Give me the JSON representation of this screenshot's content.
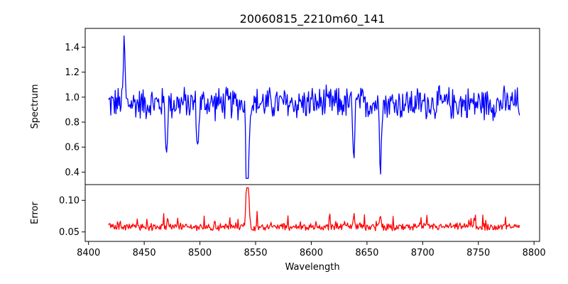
{
  "chart_data": {
    "type": "line",
    "title": "20060815_2210m60_141",
    "xlabel": "Wavelength",
    "x_range": [
      8418,
      8787
    ],
    "xlim": [
      8397,
      8805
    ],
    "x_ticks": [
      8400,
      8450,
      8500,
      8550,
      8600,
      8650,
      8700,
      8750,
      8800
    ],
    "features": [
      {
        "x": 8432,
        "spec_depth": 0.5,
        "err_bump": 0.0
      },
      {
        "x": 8470,
        "spec_depth": -0.42,
        "err_bump": 0.0
      },
      {
        "x": 8498,
        "spec_depth": -0.4,
        "err_bump": 0.0
      },
      {
        "x": 8542,
        "spec_depth": -0.62,
        "err_bump": 0.06
      },
      {
        "x": 8543.5,
        "spec_depth": -0.6,
        "err_bump": 0.055
      },
      {
        "x": 8638,
        "spec_depth": -0.48,
        "err_bump": 0.01
      },
      {
        "x": 8662,
        "spec_depth": -0.45,
        "err_bump": 0.02
      }
    ],
    "panels": [
      {
        "name": "spectrum",
        "ylabel": "Spectrum",
        "ylim": [
          0.3,
          1.55
        ],
        "y_ticks": [
          0.4,
          0.6,
          0.8,
          1.0,
          1.2,
          1.4
        ],
        "y_tick_labels": [
          "0.4",
          "0.6",
          "0.8",
          "1.0",
          "1.2",
          "1.4"
        ],
        "series": [
          {
            "name": "Spectrum",
            "color": "#0000ff",
            "baseline": 0.95,
            "noise": 0.11,
            "min": 0.35,
            "max": 1.49
          }
        ]
      },
      {
        "name": "error",
        "ylabel": "Error",
        "ylim": [
          0.035,
          0.125
        ],
        "y_ticks": [
          0.05,
          0.1
        ],
        "y_tick_labels": [
          "0.05",
          "0.10"
        ],
        "series": [
          {
            "name": "Error",
            "color": "#ff0000",
            "baseline": 0.058,
            "noise": 0.005,
            "min": 0.041,
            "max": 0.12
          }
        ]
      }
    ]
  }
}
